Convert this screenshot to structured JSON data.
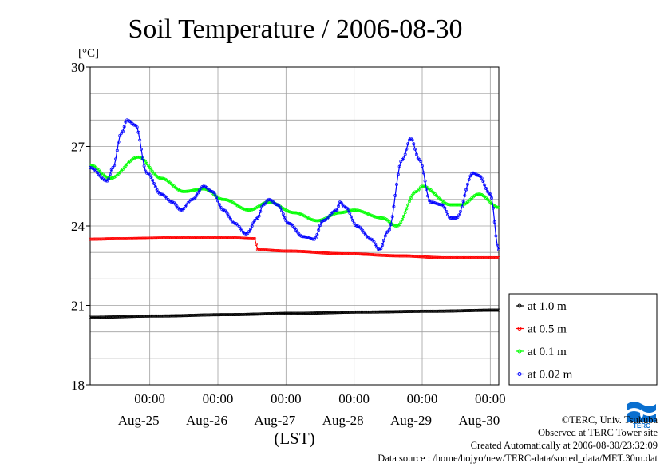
{
  "chart_data": {
    "type": "line",
    "title": "Soil Temperature / 2006-08-30",
    "ylabel": "[°C]",
    "xlabel": "(LST)",
    "ylim": [
      18,
      30
    ],
    "yticks": [
      18,
      21,
      24,
      27,
      30
    ],
    "xlim": [
      0,
      144
    ],
    "xticks": [
      {
        "x": 21,
        "time": "00:00",
        "date": "Aug-25"
      },
      {
        "x": 45,
        "time": "00:00",
        "date": "Aug-26"
      },
      {
        "x": 69,
        "time": "00:00",
        "date": "Aug-27"
      },
      {
        "x": 93,
        "time": "00:00",
        "date": "Aug-28"
      },
      {
        "x": 117,
        "time": "00:00",
        "date": "Aug-29"
      },
      {
        "x": 141,
        "time": "00:00",
        "date": "Aug-30"
      }
    ],
    "x_unit": "hours from start of plotted period",
    "grid": true,
    "legend_position": "right",
    "series": [
      {
        "name": "at 1.0 m",
        "color": "#000000",
        "points": [
          [
            0,
            20.55
          ],
          [
            24,
            20.6
          ],
          [
            48,
            20.65
          ],
          [
            72,
            20.7
          ],
          [
            96,
            20.75
          ],
          [
            120,
            20.78
          ],
          [
            144,
            20.82
          ]
        ]
      },
      {
        "name": "at 0.5 m",
        "color": "#ff0000",
        "points": [
          [
            0,
            23.5
          ],
          [
            10,
            23.52
          ],
          [
            30,
            23.55
          ],
          [
            50,
            23.55
          ],
          [
            58,
            23.52
          ],
          [
            59,
            23.1
          ],
          [
            70,
            23.05
          ],
          [
            90,
            22.95
          ],
          [
            110,
            22.87
          ],
          [
            125,
            22.8
          ],
          [
            144,
            22.8
          ]
        ]
      },
      {
        "name": "at 0.1 m",
        "color": "#00ff00",
        "points": [
          [
            0,
            26.3
          ],
          [
            7,
            25.8
          ],
          [
            17,
            26.6
          ],
          [
            25,
            25.8
          ],
          [
            33,
            25.3
          ],
          [
            40,
            25.4
          ],
          [
            47,
            25.0
          ],
          [
            56,
            24.6
          ],
          [
            63,
            24.9
          ],
          [
            72,
            24.5
          ],
          [
            80,
            24.2
          ],
          [
            88,
            24.5
          ],
          [
            93,
            24.6
          ],
          [
            103,
            24.3
          ],
          [
            108,
            24.0
          ],
          [
            115,
            25.3
          ],
          [
            117,
            25.5
          ],
          [
            127,
            24.8
          ],
          [
            131,
            24.8
          ],
          [
            137,
            25.2
          ],
          [
            144,
            24.7
          ]
        ]
      },
      {
        "name": "at 0.02 m",
        "color": "#0000ff",
        "points": [
          [
            0,
            26.2
          ],
          [
            6,
            25.7
          ],
          [
            8,
            26.2
          ],
          [
            11,
            27.5
          ],
          [
            13,
            28.0
          ],
          [
            16,
            27.8
          ],
          [
            20,
            26.0
          ],
          [
            25,
            25.2
          ],
          [
            29,
            24.9
          ],
          [
            32,
            24.6
          ],
          [
            36,
            25.0
          ],
          [
            40,
            25.5
          ],
          [
            43,
            25.3
          ],
          [
            47,
            24.6
          ],
          [
            51,
            24.1
          ],
          [
            55,
            23.7
          ],
          [
            59,
            24.3
          ],
          [
            61,
            24.8
          ],
          [
            63,
            25.0
          ],
          [
            66,
            24.8
          ],
          [
            70,
            24.1
          ],
          [
            75,
            23.6
          ],
          [
            79,
            23.5
          ],
          [
            82,
            24.2
          ],
          [
            87,
            24.6
          ],
          [
            88,
            24.9
          ],
          [
            90,
            24.7
          ],
          [
            94,
            24.0
          ],
          [
            99,
            23.5
          ],
          [
            102,
            23.1
          ],
          [
            105,
            23.8
          ],
          [
            110,
            26.5
          ],
          [
            113,
            27.3
          ],
          [
            116,
            26.5
          ],
          [
            120,
            24.9
          ],
          [
            124,
            24.8
          ],
          [
            127,
            24.3
          ],
          [
            129,
            24.3
          ],
          [
            135,
            26.0
          ],
          [
            137,
            25.9
          ],
          [
            141,
            25.2
          ],
          [
            144,
            23.1
          ]
        ]
      }
    ]
  },
  "credits": {
    "copyright": "©TERC, Univ. Tsukuba",
    "observed": "Observed at TERC Tower site",
    "created": "Created Automatically at 2006-08-30/23:32:09",
    "source": "Data source : /home/hojyo/new/TERC-data/sorted_data/MET.30m.dat"
  },
  "logo": {
    "text": "TERC",
    "color": "#0a6fcf"
  }
}
